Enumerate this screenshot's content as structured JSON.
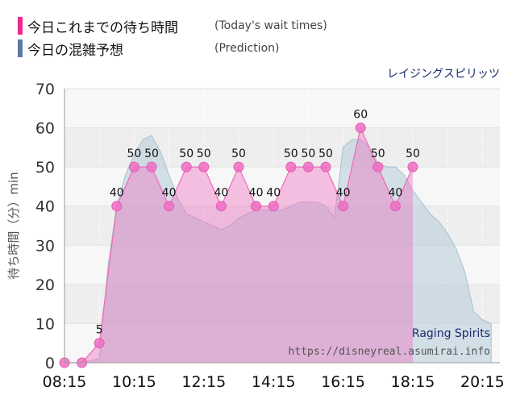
{
  "legend": {
    "today": {
      "label": "今日これまでの待ち時間",
      "label_en": "(Today's wait times)",
      "color": "#f0288c"
    },
    "prediction": {
      "label": "今日の混雑予想",
      "label_en": "(Prediction)",
      "color": "#5a7aa8"
    }
  },
  "chart_data": {
    "type": "area",
    "attraction": "レイジングスピリッツ",
    "watermark_name": "Raging Spirits",
    "watermark_url": "https://disneyreal.asumirai.info",
    "ylabel": "待ち時間（分）min",
    "ylim": [
      0,
      70
    ],
    "yticks": [
      0,
      10,
      20,
      30,
      40,
      50,
      60,
      70
    ],
    "xticks": [
      "08:15",
      "10:15",
      "12:15",
      "14:15",
      "16:15",
      "18:15",
      "20:15"
    ],
    "grid": true,
    "series": [
      {
        "name": "今日これまでの待ち時間",
        "color": "#f0288c",
        "x": [
          "08:15",
          "08:45",
          "09:15",
          "09:45",
          "10:15",
          "10:45",
          "11:15",
          "11:45",
          "12:15",
          "12:45",
          "13:15",
          "13:45",
          "14:15",
          "14:45",
          "15:15",
          "15:45",
          "16:15",
          "16:45",
          "17:15",
          "17:45",
          "18:15"
        ],
        "values": [
          0,
          0,
          5,
          40,
          50,
          50,
          40,
          50,
          50,
          40,
          50,
          40,
          40,
          50,
          50,
          50,
          40,
          60,
          50,
          40,
          50
        ]
      },
      {
        "name": "今日の混雑予想",
        "color": "#5a7aa8",
        "x": [
          "08:15",
          "08:45",
          "09:15",
          "09:30",
          "09:45",
          "10:00",
          "10:15",
          "10:30",
          "10:45",
          "11:00",
          "11:15",
          "11:30",
          "11:45",
          "12:00",
          "12:15",
          "12:30",
          "12:45",
          "13:00",
          "13:15",
          "13:30",
          "13:45",
          "14:00",
          "14:15",
          "14:30",
          "14:45",
          "15:00",
          "15:15",
          "15:30",
          "15:45",
          "16:00",
          "16:15",
          "16:30",
          "16:45",
          "17:00",
          "17:15",
          "17:30",
          "17:45",
          "18:00",
          "18:15",
          "18:30",
          "18:45",
          "19:00",
          "19:15",
          "19:30",
          "19:45",
          "20:00",
          "20:15",
          "20:30"
        ],
        "values": [
          0,
          0,
          1,
          25,
          40,
          48,
          53,
          57,
          58,
          54,
          48,
          42,
          38,
          37,
          36,
          35,
          34,
          35,
          37,
          38,
          39,
          39,
          39,
          39,
          40,
          41,
          41,
          41,
          40,
          37,
          55,
          57,
          57,
          55,
          51,
          50,
          50,
          48,
          44,
          41,
          38,
          36,
          33,
          29,
          23,
          13,
          11,
          10
        ]
      }
    ]
  }
}
